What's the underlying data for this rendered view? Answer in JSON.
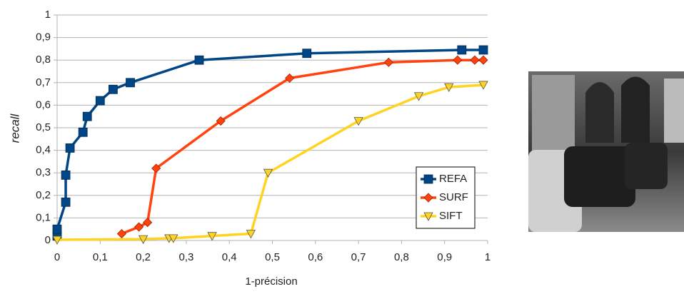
{
  "chart_data": {
    "type": "line",
    "xlabel": "1-précision",
    "ylabel": "recall",
    "xlim": [
      0,
      1
    ],
    "ylim": [
      0,
      1
    ],
    "xticks": [
      0,
      {
        "value": 0.1,
        "label": "0,1"
      },
      {
        "value": 0.2,
        "label": "0,2"
      },
      {
        "value": 0.3,
        "label": "0,3"
      },
      {
        "value": 0.4,
        "label": "0,4"
      },
      {
        "value": 0.5,
        "label": "0,5"
      },
      {
        "value": 0.6,
        "label": "0,6"
      },
      {
        "value": 0.7,
        "label": "0,7"
      },
      {
        "value": 0.8,
        "label": "0,8"
      },
      {
        "value": 0.9,
        "label": "0,9"
      },
      1
    ],
    "yticks": [
      0,
      {
        "value": 0.1,
        "label": "0,1"
      },
      {
        "value": 0.2,
        "label": "0,2"
      },
      {
        "value": 0.3,
        "label": "0,3"
      },
      {
        "value": 0.4,
        "label": "0,4"
      },
      {
        "value": 0.5,
        "label": "0,5"
      },
      {
        "value": 0.6,
        "label": "0,6"
      },
      {
        "value": 0.7,
        "label": "0,7"
      },
      {
        "value": 0.8,
        "label": "0,8"
      },
      {
        "value": 0.9,
        "label": "0,9"
      },
      1
    ],
    "grid": true,
    "legend": "lower right",
    "series": [
      {
        "name": "REFA",
        "color": "#004586",
        "marker": "square",
        "x": [
          0,
          0,
          0.02,
          0.02,
          0.03,
          0.06,
          0.07,
          0.1,
          0.13,
          0.17,
          0.33,
          0.58,
          0.94,
          0.99
        ],
        "values": [
          0.02,
          0.05,
          0.17,
          0.29,
          0.41,
          0.48,
          0.55,
          0.62,
          0.67,
          0.7,
          0.8,
          0.83,
          0.845,
          0.845
        ]
      },
      {
        "name": "SURF",
        "color": "#ff420e",
        "marker": "diamond",
        "x": [
          0.15,
          0.19,
          0.21,
          0.23,
          0.38,
          0.54,
          0.77,
          0.93,
          0.97,
          0.99
        ],
        "values": [
          0.03,
          0.06,
          0.08,
          0.32,
          0.53,
          0.72,
          0.79,
          0.8,
          0.8,
          0.8
        ]
      },
      {
        "name": "SIFT",
        "color": "#ffd320",
        "marker": "triangle-down",
        "x": [
          0,
          0.2,
          0.26,
          0.27,
          0.36,
          0.45,
          0.49,
          0.7,
          0.84,
          0.91,
          0.99
        ],
        "values": [
          0.003,
          0.006,
          0.01,
          0.01,
          0.02,
          0.03,
          0.3,
          0.53,
          0.64,
          0.68,
          0.69
        ]
      }
    ]
  }
}
